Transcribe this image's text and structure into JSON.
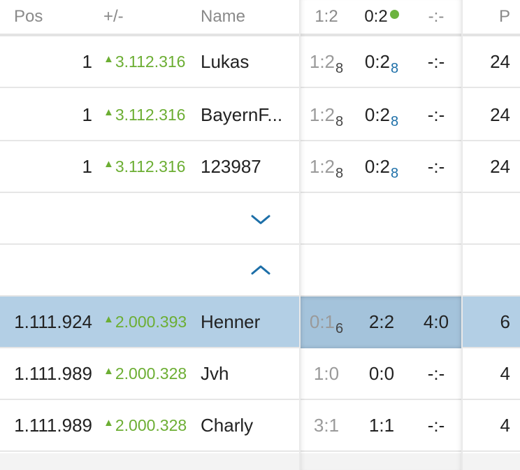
{
  "header": {
    "pos": "Pos",
    "delta": "+/-",
    "name": "Name",
    "g1": "1:2",
    "g2": "0:2",
    "g3": "-:-",
    "points": "P"
  },
  "top_rows": [
    {
      "pos": "1",
      "delta": "3.112.316",
      "name": "Lukas",
      "g1": "1:2",
      "g1_pts": "8",
      "g2": "0:2",
      "g2_pts": "8",
      "g3": "-:-",
      "points": "24"
    },
    {
      "pos": "1",
      "delta": "3.112.316",
      "name": "BayernF...",
      "g1": "1:2",
      "g1_pts": "8",
      "g2": "0:2",
      "g2_pts": "8",
      "g3": "-:-",
      "points": "24"
    },
    {
      "pos": "1",
      "delta": "3.112.316",
      "name": "123987",
      "g1": "1:2",
      "g1_pts": "8",
      "g2": "0:2",
      "g2_pts": "8",
      "g3": "-:-",
      "points": "24"
    }
  ],
  "bottom_rows": [
    {
      "pos": "1.111.924",
      "delta": "2.000.393",
      "name": "Henner",
      "g1": "0:1",
      "g1_pts": "6",
      "g2": "2:2",
      "g3": "4:0",
      "points": "6"
    },
    {
      "pos": "1.111.989",
      "delta": "2.000.328",
      "name": "Jvh",
      "g1": "1:0",
      "g2": "0:0",
      "g3": "-:-",
      "points": "4"
    },
    {
      "pos": "1.111.989",
      "delta": "2.000.328",
      "name": "Charly",
      "g1": "3:1",
      "g2": "1:1",
      "g3": "-:-",
      "points": "4"
    }
  ],
  "icons": {
    "expand": "chevron-down-icon",
    "collapse": "chevron-up-icon",
    "trend": "triangle-up-icon",
    "live": "live-dot-icon"
  },
  "colors": {
    "highlight_row": "#b3cfe5",
    "trend_up": "#6cae33",
    "points_blue": "#1d6fa8",
    "live_dot": "#6cb33f"
  }
}
